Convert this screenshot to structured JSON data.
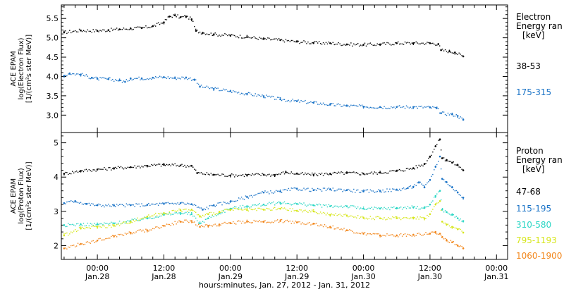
{
  "chart_data": [
    {
      "type": "scatter",
      "panel": "electron",
      "ylabel": [
        "ACE EPAM",
        "log(Electron Flux)",
        "[1/(cm²s ster MeV)]"
      ],
      "ylim": [
        2.55,
        5.85
      ],
      "yticks": [
        "3.0",
        "3.5",
        "4.0",
        "4.5",
        "5.0",
        "5.5"
      ],
      "legend_title": [
        "Electron",
        "Energy ran",
        "[keV]"
      ],
      "series": [
        {
          "name": "38-53",
          "color": "#000000",
          "points": [
            [
              -6,
              5.14
            ],
            [
              -3,
              5.19
            ],
            [
              0,
              5.18
            ],
            [
              2,
              5.2
            ],
            [
              4,
              5.22
            ],
            [
              6,
              5.24
            ],
            [
              8,
              5.25
            ],
            [
              10,
              5.3
            ],
            [
              12,
              5.4
            ],
            [
              13,
              5.55
            ],
            [
              14,
              5.58
            ],
            [
              15,
              5.53
            ],
            [
              16,
              5.55
            ],
            [
              17,
              5.48
            ],
            [
              17.8,
              5.18
            ],
            [
              19,
              5.13
            ],
            [
              21,
              5.09
            ],
            [
              24,
              5.06
            ],
            [
              27,
              5.02
            ],
            [
              30,
              4.97
            ],
            [
              33,
              4.94
            ],
            [
              36,
              4.9
            ],
            [
              39,
              4.87
            ],
            [
              42,
              4.86
            ],
            [
              45,
              4.83
            ],
            [
              48,
              4.82
            ],
            [
              51,
              4.83
            ],
            [
              54,
              4.86
            ],
            [
              57,
              4.86
            ],
            [
              60,
              4.86
            ],
            [
              61.5,
              4.84
            ],
            [
              62,
              4.68
            ],
            [
              63.5,
              4.65
            ],
            [
              64.5,
              4.62
            ],
            [
              66,
              4.52
            ]
          ]
        },
        {
          "name": "175-315",
          "color": "#1a73c7",
          "points": [
            [
              -6,
              4.02
            ],
            [
              -5,
              4.08
            ],
            [
              -3,
              4.05
            ],
            [
              -1,
              3.97
            ],
            [
              0,
              3.94
            ],
            [
              2,
              3.93
            ],
            [
              4,
              3.9
            ],
            [
              5,
              3.86
            ],
            [
              6,
              3.95
            ],
            [
              8,
              3.95
            ],
            [
              10,
              3.97
            ],
            [
              12,
              3.98
            ],
            [
              14,
              3.96
            ],
            [
              16,
              3.97
            ],
            [
              17.5,
              3.92
            ],
            [
              18.5,
              3.74
            ],
            [
              21,
              3.68
            ],
            [
              24,
              3.62
            ],
            [
              27,
              3.55
            ],
            [
              30,
              3.49
            ],
            [
              33,
              3.41
            ],
            [
              36,
              3.36
            ],
            [
              39,
              3.32
            ],
            [
              42,
              3.27
            ],
            [
              45,
              3.24
            ],
            [
              48,
              3.22
            ],
            [
              51,
              3.21
            ],
            [
              54,
              3.21
            ],
            [
              57,
              3.21
            ],
            [
              60,
              3.2
            ],
            [
              61.2,
              3.18
            ],
            [
              62,
              3.05
            ],
            [
              64,
              3.02
            ],
            [
              65,
              2.98
            ],
            [
              66,
              2.88
            ]
          ]
        }
      ]
    },
    {
      "type": "scatter",
      "panel": "proton",
      "ylabel": [
        "ACE EPAM",
        "log(Proton Flux)",
        "[1/(cm²s ster MeV)]"
      ],
      "ylim": [
        1.6,
        5.3
      ],
      "yticks": [
        "2",
        "3",
        "4",
        "5"
      ],
      "legend_title": [
        "Proton",
        "Energy ran",
        "[keV]"
      ],
      "xticks": [
        {
          "x": 0,
          "time": "00:00",
          "date": "Jan.28"
        },
        {
          "x": 12,
          "time": "12:00",
          "date": "Jan.28"
        },
        {
          "x": 24,
          "time": "00:00",
          "date": "Jan.29"
        },
        {
          "x": 36,
          "time": "12:00",
          "date": "Jan.29"
        },
        {
          "x": 48,
          "time": "00:00",
          "date": "Jan.30"
        },
        {
          "x": 60,
          "time": "12:00",
          "date": "Jan.30"
        },
        {
          "x": 72,
          "time": "00:00",
          "date": "Jan.31"
        }
      ],
      "xlim": [
        -6.5,
        74
      ],
      "xlabel": "hours:minutes, Jan. 27, 2012 - Jan. 31, 2012",
      "series": [
        {
          "name": "47-68",
          "color": "#000000",
          "points": [
            [
              -6,
              4.1
            ],
            [
              -3,
              4.18
            ],
            [
              0,
              4.22
            ],
            [
              3,
              4.26
            ],
            [
              6,
              4.29
            ],
            [
              9,
              4.33
            ],
            [
              12,
              4.36
            ],
            [
              15,
              4.34
            ],
            [
              17,
              4.33
            ],
            [
              18,
              4.12
            ],
            [
              21,
              4.07
            ],
            [
              24,
              4.05
            ],
            [
              27,
              4.06
            ],
            [
              30,
              4.07
            ],
            [
              32,
              4.06
            ],
            [
              34,
              4.14
            ],
            [
              36,
              4.1
            ],
            [
              39,
              4.07
            ],
            [
              42,
              4.1
            ],
            [
              45,
              4.12
            ],
            [
              48,
              4.1
            ],
            [
              51,
              4.13
            ],
            [
              54,
              4.18
            ],
            [
              57,
              4.26
            ],
            [
              59,
              4.38
            ],
            [
              60,
              4.6
            ],
            [
              61,
              4.9
            ],
            [
              61.8,
              5.1
            ],
            [
              62.2,
              4.55
            ],
            [
              63,
              4.5
            ],
            [
              64,
              4.42
            ],
            [
              65,
              4.35
            ],
            [
              66,
              4.2
            ]
          ]
        },
        {
          "name": "115-195",
          "color": "#1a73c7",
          "points": [
            [
              -6,
              3.24
            ],
            [
              -4,
              3.3
            ],
            [
              -2,
              3.22
            ],
            [
              0,
              3.18
            ],
            [
              3,
              3.17
            ],
            [
              6,
              3.18
            ],
            [
              9,
              3.19
            ],
            [
              12,
              3.22
            ],
            [
              15,
              3.24
            ],
            [
              17,
              3.21
            ],
            [
              19,
              3.05
            ],
            [
              21,
              3.18
            ],
            [
              24,
              3.28
            ],
            [
              27,
              3.42
            ],
            [
              30,
              3.55
            ],
            [
              33,
              3.58
            ],
            [
              36,
              3.66
            ],
            [
              39,
              3.62
            ],
            [
              42,
              3.64
            ],
            [
              45,
              3.62
            ],
            [
              48,
              3.58
            ],
            [
              51,
              3.6
            ],
            [
              54,
              3.63
            ],
            [
              56,
              3.68
            ],
            [
              57,
              3.72
            ],
            [
              58,
              3.85
            ],
            [
              59,
              3.7
            ],
            [
              60,
              3.92
            ],
            [
              61,
              4.3
            ],
            [
              61.8,
              4.6
            ],
            [
              62.2,
              3.95
            ],
            [
              63,
              3.85
            ],
            [
              64,
              3.7
            ],
            [
              65,
              3.55
            ],
            [
              66,
              3.4
            ]
          ]
        },
        {
          "name": "310-580",
          "color": "#2ad6c4",
          "points": [
            [
              -6,
              2.6
            ],
            [
              -3,
              2.62
            ],
            [
              0,
              2.62
            ],
            [
              3,
              2.65
            ],
            [
              6,
              2.72
            ],
            [
              9,
              2.8
            ],
            [
              12,
              2.9
            ],
            [
              15,
              2.95
            ],
            [
              17,
              2.92
            ],
            [
              18.5,
              2.65
            ],
            [
              20,
              2.8
            ],
            [
              22,
              2.95
            ],
            [
              24,
              3.08
            ],
            [
              27,
              3.15
            ],
            [
              30,
              3.2
            ],
            [
              33,
              3.25
            ],
            [
              36,
              3.22
            ],
            [
              39,
              3.18
            ],
            [
              42,
              3.15
            ],
            [
              45,
              3.15
            ],
            [
              48,
              3.08
            ],
            [
              51,
              3.08
            ],
            [
              54,
              3.1
            ],
            [
              57,
              3.12
            ],
            [
              59,
              3.1
            ],
            [
              60,
              3.2
            ],
            [
              61,
              3.45
            ],
            [
              61.8,
              3.6
            ],
            [
              62.2,
              3.05
            ],
            [
              63,
              2.98
            ],
            [
              64,
              2.9
            ],
            [
              65,
              2.8
            ],
            [
              66,
              2.72
            ]
          ]
        },
        {
          "name": "795-1193",
          "color": "#d6e61a",
          "points": [
            [
              -6,
              2.3
            ],
            [
              -3,
              2.5
            ],
            [
              0,
              2.55
            ],
            [
              3,
              2.58
            ],
            [
              6,
              2.7
            ],
            [
              9,
              2.85
            ],
            [
              12,
              2.95
            ],
            [
              15,
              3.03
            ],
            [
              17,
              3.05
            ],
            [
              18.5,
              2.85
            ],
            [
              20,
              2.92
            ],
            [
              22,
              2.98
            ],
            [
              24,
              3.05
            ],
            [
              27,
              3.04
            ],
            [
              30,
              3.05
            ],
            [
              33,
              3.08
            ],
            [
              36,
              3.02
            ],
            [
              39,
              3.0
            ],
            [
              42,
              2.9
            ],
            [
              45,
              2.88
            ],
            [
              48,
              2.82
            ],
            [
              51,
              2.8
            ],
            [
              54,
              2.8
            ],
            [
              57,
              2.82
            ],
            [
              59,
              2.8
            ],
            [
              60,
              2.92
            ],
            [
              61,
              3.2
            ],
            [
              61.8,
              3.3
            ],
            [
              62.2,
              2.7
            ],
            [
              63,
              2.62
            ],
            [
              64,
              2.55
            ],
            [
              65,
              2.48
            ],
            [
              66,
              2.38
            ]
          ]
        },
        {
          "name": "1060-1900",
          "color": "#f2861a",
          "points": [
            [
              -6,
              1.92
            ],
            [
              -3,
              2.05
            ],
            [
              0,
              2.15
            ],
            [
              3,
              2.28
            ],
            [
              6,
              2.38
            ],
            [
              9,
              2.45
            ],
            [
              12,
              2.58
            ],
            [
              15,
              2.7
            ],
            [
              17,
              2.72
            ],
            [
              18.5,
              2.55
            ],
            [
              20,
              2.58
            ],
            [
              22,
              2.62
            ],
            [
              24,
              2.66
            ],
            [
              27,
              2.7
            ],
            [
              30,
              2.7
            ],
            [
              33,
              2.72
            ],
            [
              36,
              2.68
            ],
            [
              39,
              2.64
            ],
            [
              42,
              2.55
            ],
            [
              45,
              2.45
            ],
            [
              48,
              2.35
            ],
            [
              51,
              2.3
            ],
            [
              54,
              2.3
            ],
            [
              57,
              2.32
            ],
            [
              60,
              2.35
            ],
            [
              61,
              2.4
            ],
            [
              61.8,
              2.35
            ],
            [
              62.2,
              2.25
            ],
            [
              63,
              2.15
            ],
            [
              64,
              2.1
            ],
            [
              65,
              2.0
            ],
            [
              66,
              1.92
            ]
          ]
        }
      ]
    }
  ]
}
